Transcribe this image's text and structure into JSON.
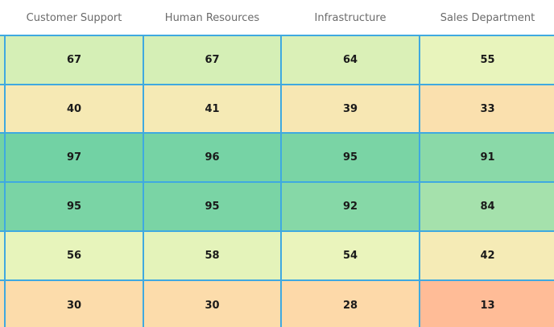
{
  "chart_data": {
    "type": "heatmap",
    "columns": [
      "Customer Support",
      "Human Resources",
      "Infrastructure",
      "Sales Department"
    ],
    "rows": [
      [
        67,
        67,
        64,
        55
      ],
      [
        40,
        41,
        39,
        33
      ],
      [
        97,
        96,
        95,
        91
      ],
      [
        95,
        95,
        92,
        84
      ],
      [
        56,
        58,
        54,
        42
      ],
      [
        30,
        30,
        28,
        13
      ]
    ],
    "value_range": [
      0,
      100
    ],
    "color_scale": [
      "#ffa086",
      "#ffd5a6",
      "#f0f6be",
      "#c9ecb2",
      "#66cea2"
    ]
  }
}
